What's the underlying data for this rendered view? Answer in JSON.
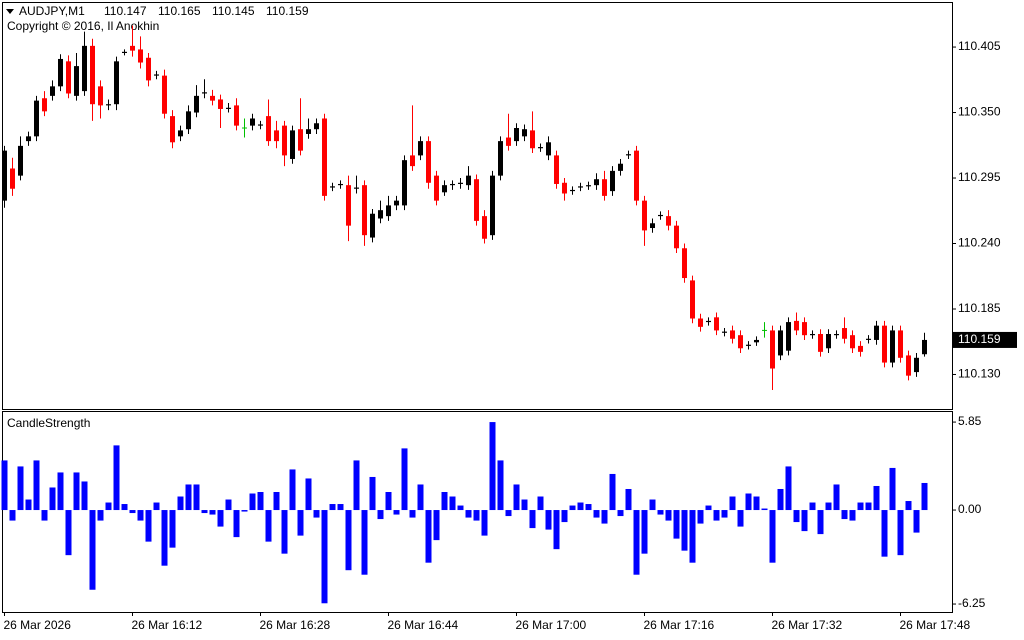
{
  "chart_data": {
    "type": "candlestick",
    "symbol": "AUDJPY,M1",
    "copyright": "Copyright © 2016, Il Anokhin",
    "categories": [
      "26 Mar 2026",
      null,
      null,
      null,
      null,
      null,
      null,
      null,
      null,
      null,
      null,
      null,
      null,
      null,
      null,
      null,
      "26 Mar 16:12",
      null,
      null,
      null,
      null,
      null,
      null,
      null,
      null,
      null,
      null,
      null,
      null,
      null,
      null,
      null,
      "26 Mar 16:28",
      null,
      null,
      null,
      null,
      null,
      null,
      null,
      null,
      null,
      null,
      null,
      null,
      null,
      null,
      null,
      "26 Mar 16:44",
      null,
      null,
      null,
      null,
      null,
      null,
      null,
      null,
      null,
      null,
      null,
      null,
      null,
      null,
      null,
      "26 Mar 17:00",
      null,
      null,
      null,
      null,
      null,
      null,
      null,
      null,
      null,
      null,
      null,
      null,
      null,
      null,
      null,
      "26 Mar 17:16",
      null,
      null,
      null,
      null,
      null,
      null,
      null,
      null,
      null,
      null,
      null,
      null,
      null,
      null,
      null,
      "26 Mar 17:32",
      null,
      null,
      null,
      null,
      null,
      null,
      null,
      null,
      null,
      null,
      null,
      null,
      null,
      null,
      null,
      "26 Mar 17:48",
      null,
      null,
      null
    ],
    "open": [
      110.276,
      110.303,
      110.297,
      110.326,
      110.33,
      110.362,
      110.364,
      110.372,
      110.393,
      110.364,
      110.368,
      110.406,
      110.372,
      110.356,
      110.357,
      110.4,
      110.406,
      110.403,
      110.396,
      110.381,
      110.381,
      110.347,
      110.33,
      110.336,
      110.35,
      110.366,
      110.364,
      110.361,
      110.353,
      110.356,
      110.337,
      110.339,
      110.339,
      110.347,
      110.335,
      110.339,
      110.311,
      110.336,
      110.332,
      110.336,
      110.345,
      110.287,
      110.289,
      110.289,
      110.286,
      110.289,
      110.245,
      110.261,
      110.263,
      110.272,
      110.272,
      110.314,
      110.314,
      110.326,
      110.297,
      110.283,
      110.289,
      110.29,
      110.289,
      110.294,
      110.263,
      110.247,
      110.297,
      110.329,
      110.326,
      110.33,
      110.335,
      110.32,
      110.314,
      110.314,
      110.291,
      110.284,
      110.287,
      110.288,
      110.289,
      110.294,
      110.284,
      110.301,
      110.314,
      110.318,
      110.276,
      110.253,
      110.263,
      110.263,
      110.255,
      110.236,
      110.209,
      110.177,
      110.174,
      110.178,
      110.165,
      110.167,
      110.163,
      110.154,
      110.157,
      110.167,
      110.167,
      110.146,
      110.15,
      110.175,
      110.174,
      110.163,
      110.164,
      110.152,
      110.163,
      110.169,
      110.163,
      110.154,
      110.159,
      110.159,
      110.171,
      110.14,
      110.167,
      110.146,
      110.132,
      110.147
    ],
    "high": [
      110.322,
      110.312,
      110.33,
      110.334,
      110.364,
      110.368,
      110.377,
      110.399,
      110.398,
      110.4,
      110.418,
      110.412,
      110.377,
      110.361,
      110.397,
      110.403,
      110.423,
      110.414,
      110.4,
      110.385,
      110.386,
      110.352,
      110.339,
      110.356,
      110.373,
      110.378,
      110.369,
      110.365,
      110.358,
      110.362,
      110.345,
      110.349,
      110.343,
      110.361,
      110.343,
      110.343,
      110.339,
      110.362,
      110.345,
      110.345,
      110.349,
      110.291,
      110.293,
      110.297,
      110.297,
      110.293,
      110.269,
      110.276,
      110.28,
      110.28,
      110.314,
      110.356,
      110.33,
      110.33,
      110.301,
      110.293,
      110.293,
      110.295,
      110.305,
      110.298,
      110.268,
      110.301,
      110.33,
      110.349,
      110.341,
      110.34,
      110.351,
      110.324,
      110.33,
      110.318,
      110.295,
      110.288,
      110.291,
      110.292,
      110.299,
      110.301,
      110.305,
      110.311,
      110.318,
      110.322,
      110.28,
      110.261,
      110.267,
      110.268,
      110.259,
      110.24,
      110.213,
      110.181,
      110.178,
      110.182,
      110.169,
      110.171,
      110.167,
      110.158,
      110.162,
      110.174,
      110.171,
      110.171,
      110.178,
      110.182,
      110.178,
      110.167,
      110.168,
      110.168,
      110.167,
      110.178,
      110.167,
      110.158,
      110.163,
      110.175,
      110.175,
      110.171,
      110.171,
      110.15,
      110.148,
      110.165
    ],
    "low": [
      110.27,
      110.28,
      110.293,
      110.322,
      110.326,
      110.347,
      110.36,
      110.368,
      110.362,
      110.36,
      110.364,
      110.343,
      110.345,
      110.352,
      110.352,
      110.398,
      110.397,
      110.387,
      110.372,
      110.378,
      110.345,
      110.32,
      110.326,
      110.332,
      110.346,
      110.362,
      110.356,
      110.337,
      110.35,
      110.335,
      110.329,
      110.335,
      110.336,
      110.322,
      110.32,
      110.305,
      110.307,
      110.314,
      110.328,
      110.332,
      110.276,
      110.284,
      110.286,
      110.242,
      110.282,
      110.238,
      110.241,
      110.257,
      110.259,
      110.268,
      110.268,
      110.301,
      110.31,
      110.286,
      110.272,
      110.28,
      110.285,
      110.286,
      110.285,
      110.255,
      110.24,
      110.243,
      110.293,
      110.318,
      110.322,
      110.326,
      110.316,
      110.317,
      110.31,
      110.286,
      110.276,
      110.281,
      110.284,
      110.285,
      110.285,
      110.276,
      110.28,
      110.297,
      110.311,
      110.272,
      110.238,
      110.249,
      110.26,
      110.251,
      110.232,
      110.207,
      110.173,
      110.166,
      110.171,
      110.163,
      110.162,
      110.156,
      110.148,
      110.151,
      110.154,
      110.161,
      110.117,
      110.142,
      110.146,
      110.163,
      110.159,
      110.16,
      110.145,
      110.148,
      110.16,
      110.156,
      110.148,
      110.145,
      110.156,
      110.155,
      110.136,
      110.136,
      110.14,
      110.125,
      110.128,
      110.145
    ],
    "close": [
      110.318,
      110.286,
      110.322,
      110.33,
      110.36,
      110.351,
      110.372,
      110.395,
      110.366,
      110.389,
      110.406,
      110.357,
      110.356,
      110.357,
      110.393,
      110.401,
      110.402,
      110.392,
      110.377,
      110.382,
      110.349,
      110.325,
      110.335,
      110.351,
      110.364,
      110.367,
      110.36,
      110.353,
      110.354,
      110.339,
      110.337,
      110.345,
      110.34,
      110.326,
      110.326,
      110.314,
      110.335,
      110.318,
      110.336,
      110.341,
      110.28,
      110.288,
      110.29,
      110.255,
      110.287,
      110.247,
      110.265,
      110.268,
      110.272,
      110.276,
      110.31,
      110.305,
      110.326,
      110.291,
      110.276,
      110.289,
      110.29,
      110.291,
      110.297,
      110.259,
      110.244,
      110.297,
      110.326,
      110.322,
      110.337,
      110.336,
      110.32,
      110.321,
      110.325,
      110.29,
      110.282,
      110.285,
      110.288,
      110.289,
      110.294,
      110.28,
      110.301,
      110.307,
      110.315,
      110.276,
      110.251,
      110.257,
      110.264,
      110.255,
      110.236,
      110.211,
      110.177,
      110.17,
      110.175,
      110.167,
      110.166,
      110.16,
      110.152,
      110.155,
      110.159,
      110.167,
      110.135,
      110.167,
      110.174,
      110.167,
      110.163,
      110.164,
      110.149,
      110.164,
      110.164,
      110.16,
      110.152,
      110.149,
      110.16,
      110.171,
      110.14,
      110.167,
      110.144,
      110.129,
      110.144,
      110.159
    ],
    "up_color": "#000000",
    "down_color": "#ff0000",
    "doji_color": "#00c000",
    "ylim": [
      110.101,
      110.442
    ],
    "yticks": [
      110.405,
      {
        "value": 110.35,
        "label": "110.350"
      },
      110.295,
      {
        "value": 110.24,
        "label": "110.240"
      },
      110.185,
      {
        "value": 110.13,
        "label": "110.130"
      }
    ],
    "indicator": {
      "type": "bar",
      "name": "CandleStrength",
      "color": "#0000ff",
      "values": [
        3.3,
        -0.7,
        2.9,
        0.7,
        3.3,
        -0.7,
        1.5,
        2.5,
        -3.0,
        2.5,
        1.9,
        -5.3,
        -0.7,
        0.5,
        4.3,
        0.4,
        -0.2,
        -0.7,
        -2.1,
        0.5,
        -3.7,
        -2.5,
        0.9,
        1.7,
        1.7,
        -0.2,
        -0.3,
        -1.1,
        0.7,
        -1.8,
        -0.1,
        1.1,
        1.2,
        -2.1,
        1.2,
        -2.9,
        2.7,
        -1.7,
        2.1,
        -0.5,
        -6.2,
        0.4,
        0.4,
        -4.0,
        3.3,
        -4.3,
        2.2,
        -0.6,
        1.2,
        -0.3,
        4.1,
        -0.5,
        1.7,
        -3.5,
        -2.0,
        1.2,
        0.9,
        0.3,
        -0.5,
        -0.7,
        -1.7,
        5.85,
        3.3,
        -0.4,
        1.7,
        0.7,
        -1.2,
        0.9,
        -1.3,
        -2.6,
        -0.8,
        0.3,
        0.5,
        0.4,
        -0.5,
        -0.9,
        2.4,
        -0.4,
        1.4,
        -4.3,
        -2.9,
        0.7,
        -0.3,
        -0.7,
        -1.9,
        -2.7,
        -3.5,
        -0.9,
        0.3,
        -0.7,
        -0.5,
        0.9,
        -1.1,
        1.1,
        0.9,
        0.1,
        -3.5,
        1.4,
        2.9,
        -0.8,
        -1.4,
        0.5,
        -1.6,
        0.5,
        1.7,
        -0.6,
        -0.7,
        0.5,
        0.5,
        1.6,
        -3.1,
        2.8,
        -3.0,
        0.6,
        -1.5,
        1.8
      ],
      "ylim": [
        -6.78,
        6.52
      ],
      "yticks": [
        5.85,
        {
          "value": 0,
          "label": "0.00"
        },
        -6.25
      ]
    }
  }
}
